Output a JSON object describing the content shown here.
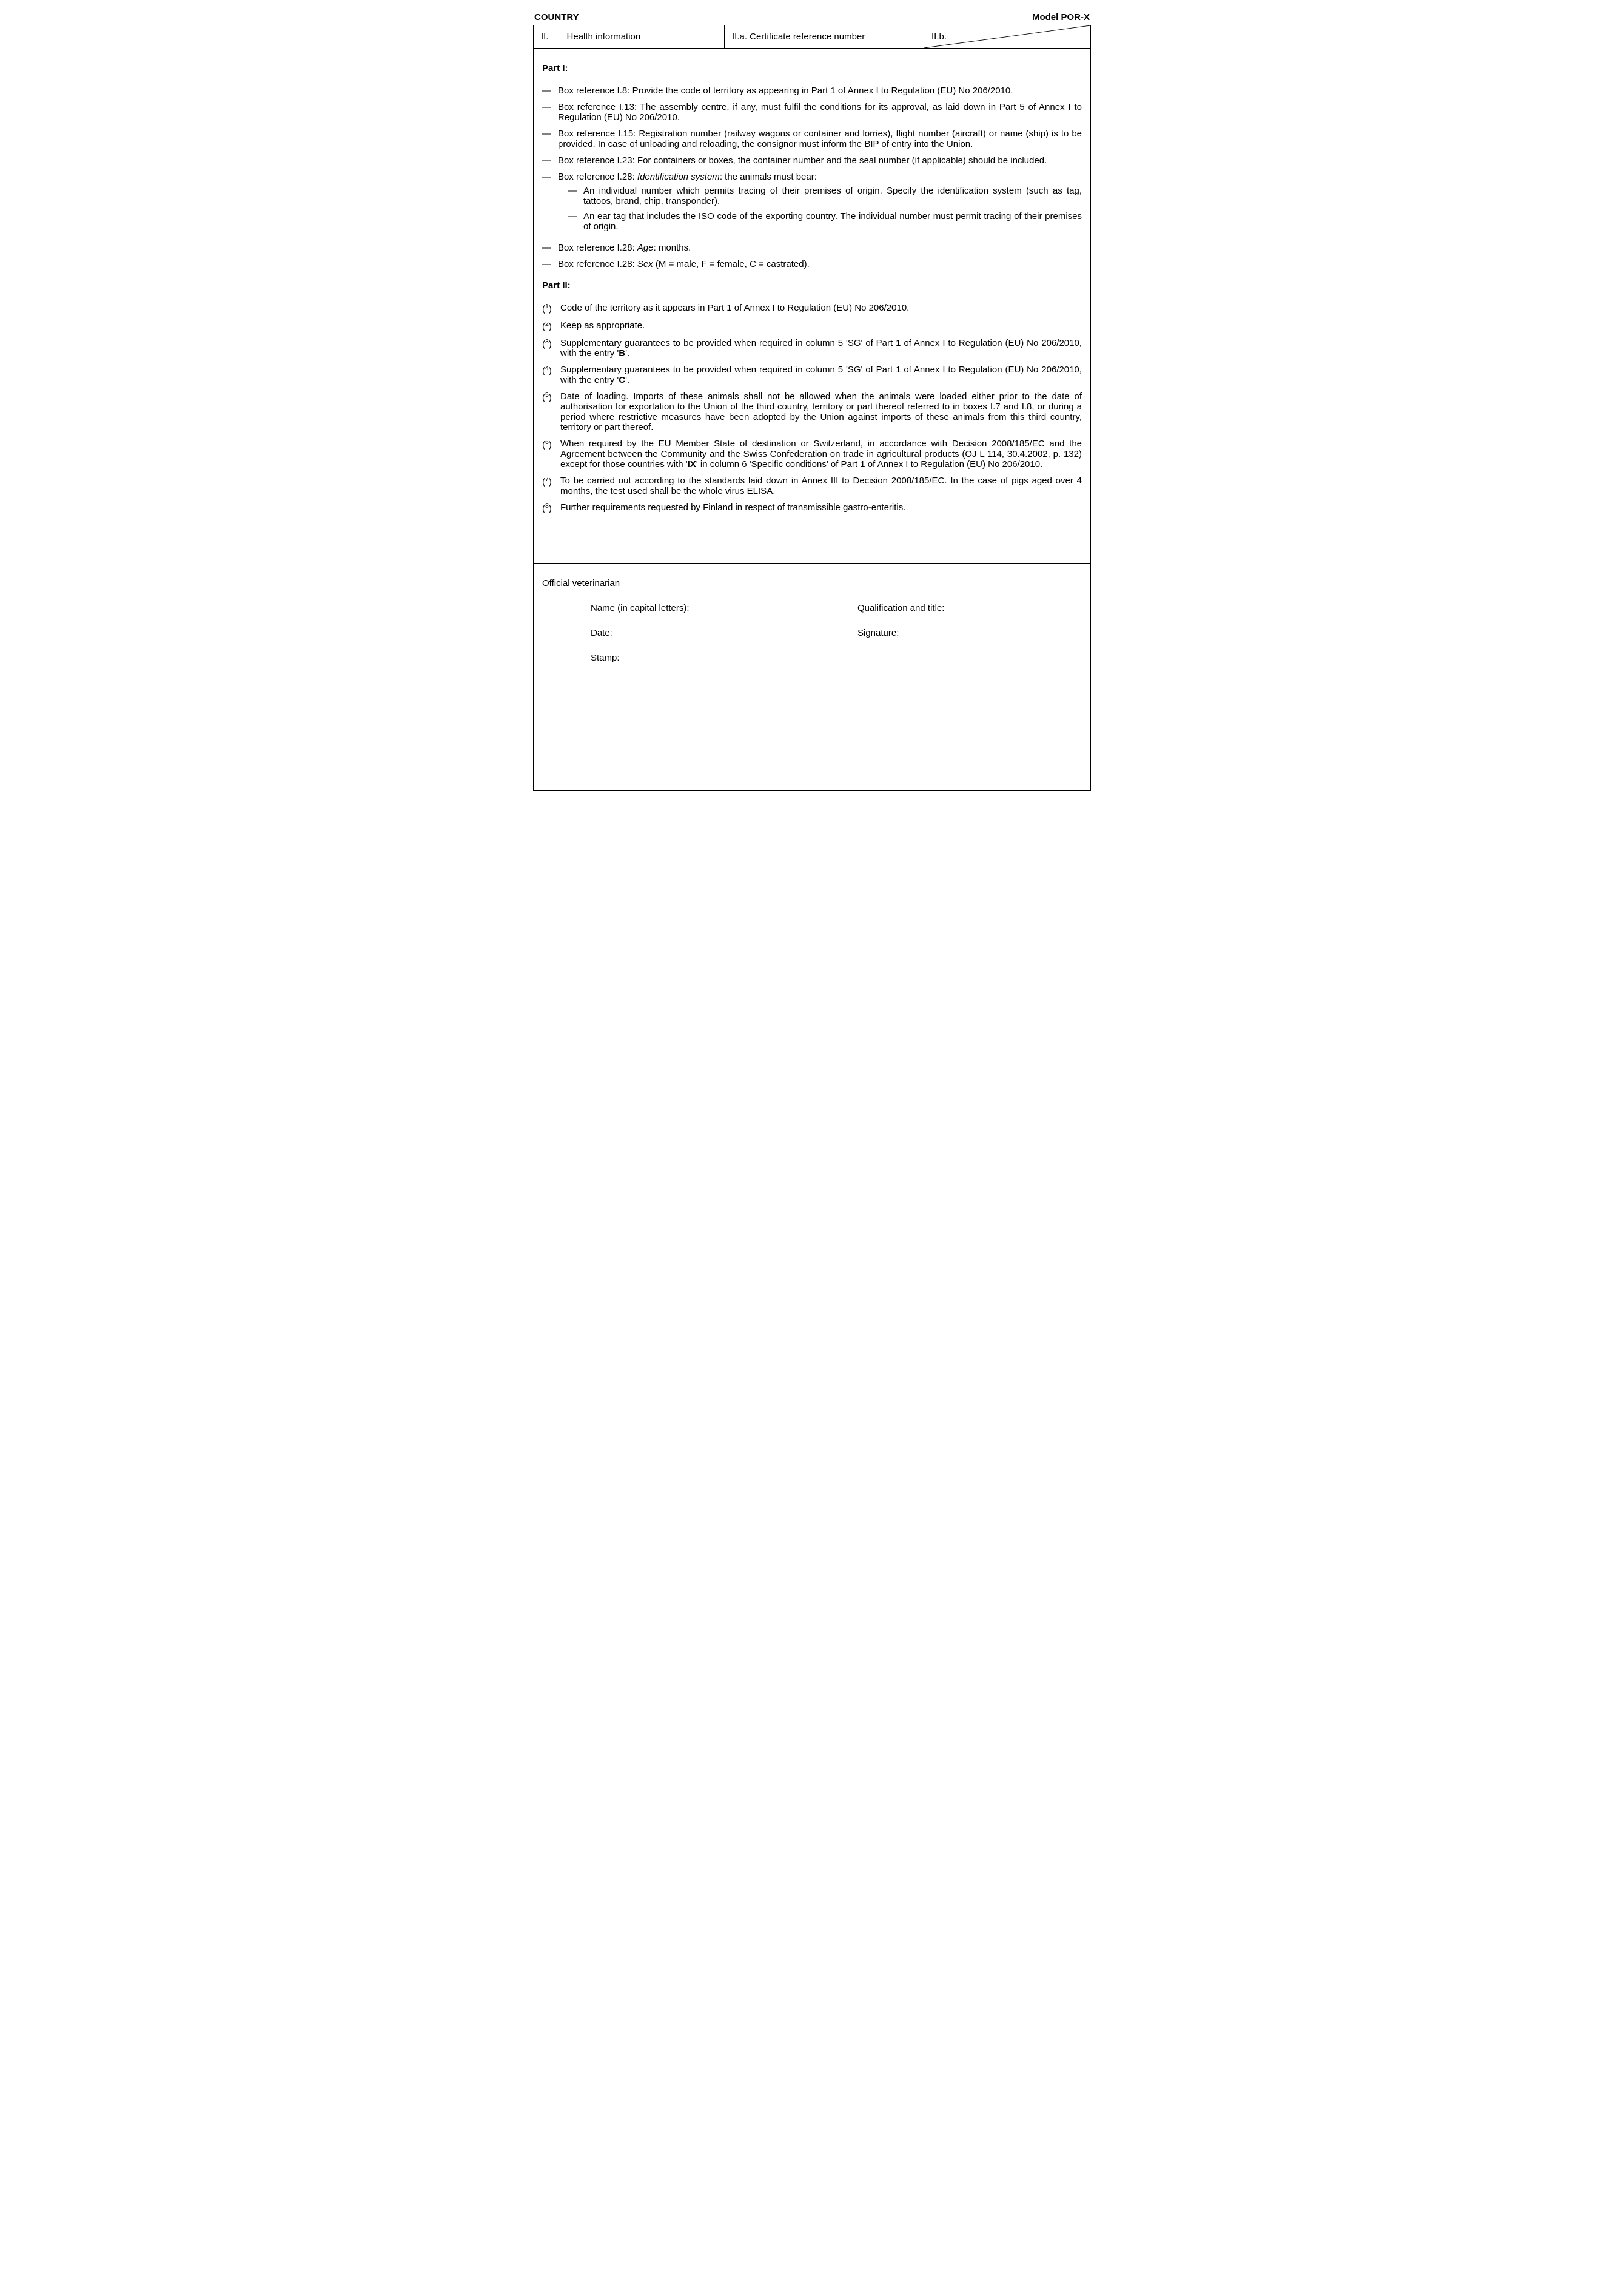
{
  "header": {
    "country_label": "COUNTRY",
    "model_label": "Model POR-X",
    "col_a_num": "II.",
    "col_a_text": "Health information",
    "col_b": "II.a. Certificate reference number",
    "col_c": "II.b."
  },
  "part1": {
    "title": "Part I:",
    "items": [
      {
        "text": "Box reference I.8: Provide the code of territory as appearing in Part 1 of Annex I to Regulation (EU) No 206/2010."
      },
      {
        "text": "Box reference I.13: The assembly centre, if any, must fulfil the conditions for its approval, as laid down in Part 5 of Annex I to Regulation (EU) No 206/2010."
      },
      {
        "text": "Box reference I.15: Registration number (railway wagons or container and lorries), flight number (aircraft) or name (ship) is to be provided. In case of unloading and reloading, the consignor must inform the BIP of entry into the Union."
      },
      {
        "text": "Box reference I.23: For containers or boxes, the container number and the seal number (if applicable) should be included."
      },
      {
        "pre": "Box reference I.28: ",
        "italic": "Identification system",
        "post": ": the animals must bear:",
        "sub": [
          "An individual number which permits tracing of their premises of origin. Specify the identification system (such as tag, tattoos, brand, chip, transponder).",
          "An ear tag that includes the ISO code of the exporting country. The individual number must permit tracing of their premises of origin."
        ]
      },
      {
        "pre": "Box reference I.28: ",
        "italic": "Age",
        "post": ": months."
      },
      {
        "pre": "Box reference I.28: ",
        "italic": "Sex",
        "post": " (M = male, F = female, C = castrated)."
      }
    ]
  },
  "part2": {
    "title": "Part II:",
    "items": [
      {
        "n": "1",
        "text": "Code of the territory as it appears in Part 1 of Annex I to Regulation (EU) No 206/2010."
      },
      {
        "n": "2",
        "text": "Keep as appropriate."
      },
      {
        "n": "3",
        "pre": "Supplementary guarantees to be provided when required in column 5 'SG' of Part 1 of Annex I to Regulation (EU) No 206/2010, with the entry '",
        "bold": "B",
        "post": "'."
      },
      {
        "n": "4",
        "pre": "Supplementary guarantees to be provided when required in column 5 'SG' of Part 1 of Annex I to Regulation (EU) No 206/2010, with the entry '",
        "bold": "C",
        "post": "'."
      },
      {
        "n": "5",
        "text": "Date of loading. Imports of these animals shall not be allowed when the animals were loaded either prior to the date of authorisation for exportation to the Union of the third country, territory or part thereof referred to in boxes I.7 and I.8, or during a period where restrictive measures have been adopted by the Union against imports of these animals from this third country, territory or part thereof."
      },
      {
        "n": "6",
        "pre": "When required by the EU Member State of destination or Switzerland, in accordance with Decision 2008/185/EC and the Agreement between the Community and the Swiss Confederation on trade in agricultural products (OJ L 114, 30.4.2002, p. 132) except for those countries with '",
        "bold": "IX",
        "post": "' in column 6 'Specific conditions' of Part 1 of Annex I to Regulation (EU) No 206/2010."
      },
      {
        "n": "7",
        "text": "To be carried out according to the standards laid down in Annex III to Decision 2008/185/EC. In the case of pigs aged over 4 months, the test used shall be the whole virus ELISA."
      },
      {
        "n": "8",
        "text": "Further requirements requested by Finland in respect of transmissible gastro-enteritis."
      }
    ]
  },
  "sign": {
    "title": "Official veterinarian",
    "name": "Name (in capital letters):",
    "qual": "Qualification and title:",
    "date": "Date:",
    "sig": "Signature:",
    "stamp": "Stamp:"
  }
}
